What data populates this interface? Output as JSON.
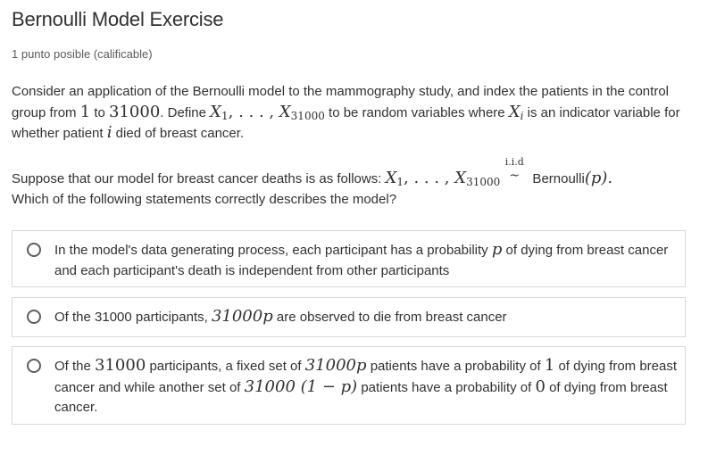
{
  "header": {
    "title": "Bernoulli Model Exercise",
    "points": "1 punto posible (calificable)"
  },
  "problem": {
    "p1": {
      "t1": "Consider an application of the Bernoulli model to the mammography study, and index the patients in the control group from ",
      "m1": "1",
      "t2": " to ",
      "m2": "31000",
      "t3": ". Define ",
      "m3a": "X",
      "m3a_sub": "1",
      "m3b": ", . . . , ",
      "m3c": "X",
      "m3c_sub": "31000",
      "t4": " to be random variables where ",
      "m4": "X",
      "m4_sub": "i",
      "t5": " is an indicator variable for whether patient ",
      "m5": "i",
      "t6": " died of breast cancer."
    },
    "p2": {
      "t1": "Suppose that our model for breast cancer deaths is as follows: ",
      "m1a": "X",
      "m1a_sub": "1",
      "m1b": ", . . . , ",
      "m1c": "X",
      "m1c_sub": "31000",
      "iid_label": "i.i.d",
      "iid_symbol": "~",
      "t2": " Bernoulli",
      "m2": "(p).",
      "line2": "Which of the following statements correctly describes the model?"
    }
  },
  "options": [
    {
      "t1": "In the model's data generating process, each participant has a probability ",
      "m1": "p",
      "t2": " of dying from breast cancer and each participant's death is independent from other participants"
    },
    {
      "t1": "Of the 31000 participants, ",
      "m1": "31000p",
      "t2": " are observed to die from breast cancer"
    },
    {
      "t1": "Of the ",
      "m1": "31000",
      "t2": " participants, a fixed set of ",
      "m2": "31000p",
      "t3": " patients have a probability of ",
      "m3": "1",
      "t4": " of dying from breast cancer and while another set of ",
      "m4": "31000 (1 − p)",
      "t5": " patients have a probability of ",
      "m5": "0",
      "t6": " of dying from breast cancer."
    }
  ]
}
